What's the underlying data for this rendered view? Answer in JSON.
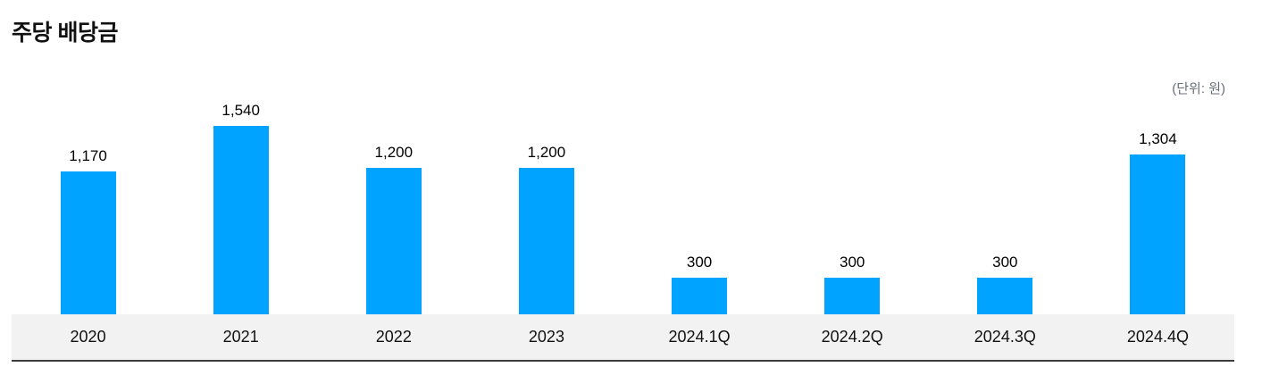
{
  "page": {
    "title": "주당 배당금",
    "unit_label": "(단위: 원)"
  },
  "chart_data": {
    "type": "bar",
    "title": "주당 배당금",
    "unit_note": "(단위: 원)",
    "categories": [
      "2020",
      "2021",
      "2022",
      "2023",
      "2024.1Q",
      "2024.2Q",
      "2024.3Q",
      "2024.4Q"
    ],
    "values": [
      1170,
      1540,
      1200,
      1200,
      300,
      300,
      300,
      1304
    ],
    "value_labels": [
      "1,170",
      "1,540",
      "1,200",
      "1,200",
      "300",
      "300",
      "300",
      "1,304"
    ],
    "xlabel": "",
    "ylabel": "",
    "ylim": [
      0,
      1600
    ],
    "grid": false,
    "legend": false,
    "bar_color": "#00a3ff",
    "axis_band_color": "#f2f2f2",
    "axis_line_color": "#3d3d3d",
    "value_label_color": "#000000",
    "category_label_color": "#111111",
    "unit_label_color": "#686e76"
  }
}
